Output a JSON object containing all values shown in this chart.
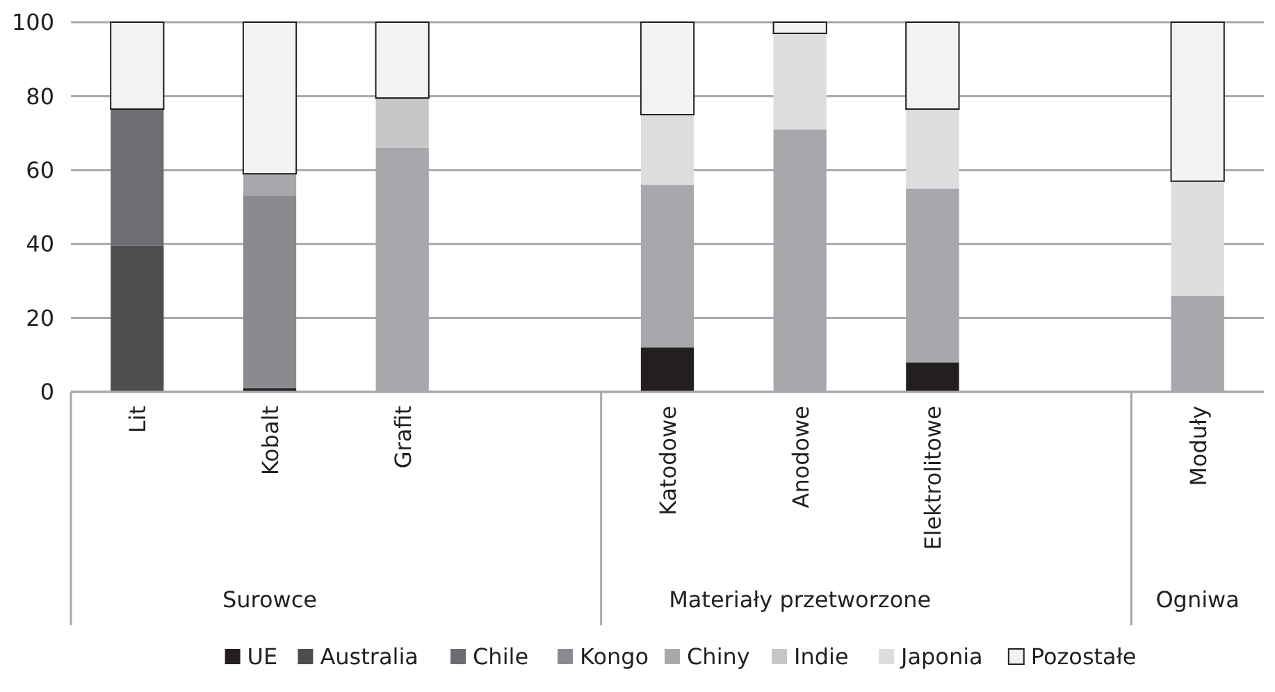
{
  "chart_data": {
    "type": "bar",
    "stacked": true,
    "categories": [
      "Lit",
      "Kobalt",
      "Grafit",
      null,
      "Katodowe",
      "Anodowe",
      "Elektrolitowe",
      null,
      "Moduły"
    ],
    "series": [
      {
        "name": "UE",
        "color": "#231f20",
        "values": [
          0,
          1,
          0,
          null,
          12,
          0,
          8,
          null,
          0
        ]
      },
      {
        "name": "Australia",
        "color": "#4d4e50",
        "values": [
          39.5,
          0,
          0,
          null,
          0,
          0,
          0,
          null,
          0
        ]
      },
      {
        "name": "Chile",
        "color": "#6d6e71",
        "values": [
          37,
          0,
          0,
          null,
          0,
          0,
          0,
          null,
          0
        ]
      },
      {
        "name": "Kongo",
        "color": "#8a8b8e",
        "values": [
          0,
          52,
          0,
          null,
          0,
          0,
          0,
          null,
          0
        ]
      },
      {
        "name": "Chiny",
        "color": "#a7a8ab",
        "values": [
          0,
          6,
          66,
          null,
          44,
          71,
          47,
          null,
          26
        ]
      },
      {
        "name": "Indie",
        "color": "#c6c7c9",
        "values": [
          0,
          0,
          13.5,
          null,
          0,
          0,
          0,
          null,
          0
        ]
      },
      {
        "name": "Japonia",
        "color": "#dcdddf",
        "values": [
          0,
          0,
          0,
          null,
          19,
          26,
          21.5,
          null,
          31
        ]
      },
      {
        "name": "Pozostałe",
        "color": "#f1f2f4",
        "values": [
          23.5,
          41,
          20.5,
          null,
          25,
          3,
          23.5,
          null,
          43
        ]
      }
    ],
    "ylim": [
      0,
      100
    ],
    "yticks": [
      0,
      20,
      40,
      60,
      80,
      100
    ],
    "grid": "y",
    "legend": "bottom",
    "annotations": [
      "Surowce",
      "Materiały przetworzone",
      "Ogniwa"
    ]
  }
}
